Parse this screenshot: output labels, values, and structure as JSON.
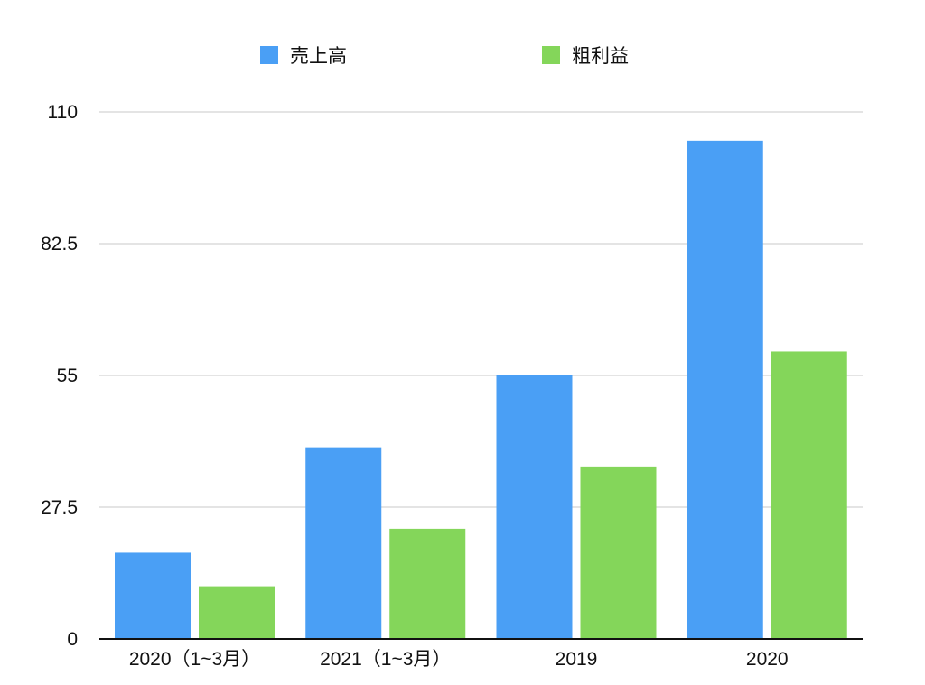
{
  "chart_data": {
    "type": "bar",
    "title": "",
    "xlabel": "",
    "ylabel": "",
    "categories": [
      "2020（1~3月）",
      "2021（1~3月）",
      "2019",
      "2020"
    ],
    "series": [
      {
        "name": "売上高",
        "color": "#4a9ff5",
        "values": [
          18,
          40,
          55,
          104
        ]
      },
      {
        "name": "粗利益",
        "color": "#84d65a",
        "values": [
          11,
          23,
          36,
          60
        ]
      }
    ],
    "ylim": [
      0,
      110
    ],
    "yticks": [
      "0",
      "27.5",
      "55",
      "82.5",
      "110"
    ],
    "grid": true,
    "legend": "top"
  }
}
